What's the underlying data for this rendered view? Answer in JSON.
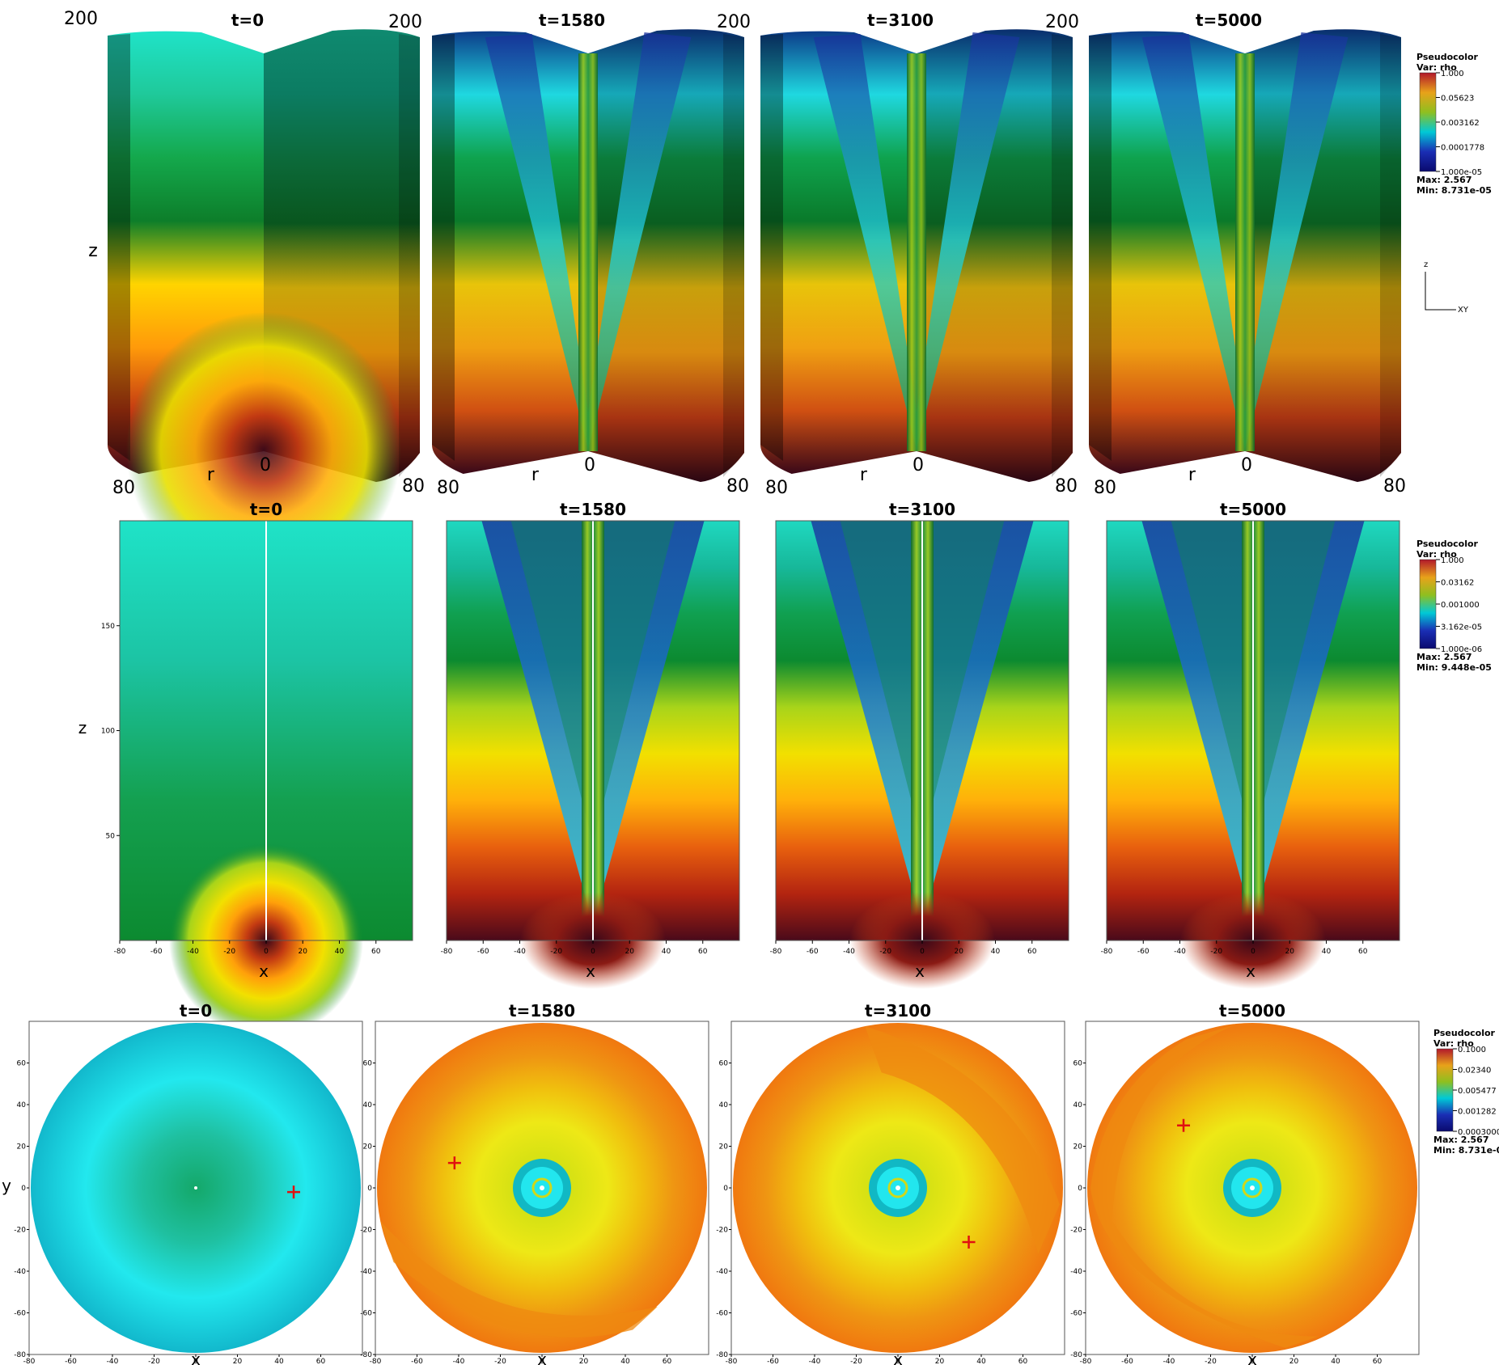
{
  "figure": {
    "legend_title": "Pseudocolor",
    "legend_var": "Var: rho",
    "orient_z": "z",
    "orient_xy": "XY"
  },
  "palette": {
    "cb_colors": [
      "#fff5f0",
      "#b2182b",
      "#e8a21a",
      "#8fbf1f",
      "#00c9d6",
      "#1a2eb4",
      "#0a0a6e"
    ],
    "row3d": {
      "left": [
        "#1fe3c8",
        "#1fc99a",
        "#14a84c",
        "#0d7e2a",
        "#ffd400",
        "#ff9a0a",
        "#c33a12",
        "#3a0818"
      ],
      "right": [
        "#0f8a70",
        "#0c7c62",
        "#0c6a3a",
        "#09561e",
        "#caa60a",
        "#d98a0a",
        "#a83212",
        "#2a0612"
      ]
    },
    "rowmid": [
      "#1fd8c0",
      "#17b89a",
      "#10a050",
      "#0c8a30",
      "#a8d41a",
      "#f2e000",
      "#ffb00a",
      "#e8600e",
      "#b32410",
      "#4a0a1a"
    ],
    "cone": [
      "#1a3a9e",
      "#1b7fd8",
      "#22e6ee"
    ],
    "disk": {
      "t0": [
        "#14a86a",
        "#1fc0a0",
        "#22e8ee",
        "#12b8cc"
      ],
      "late": [
        "#c6df12",
        "#d8e214",
        "#eee816",
        "#f0c00e",
        "#ef9512",
        "#f07810"
      ]
    }
  },
  "chart_data": [
    {
      "type": "3d-volume",
      "variable": "rho",
      "panels": [
        {
          "title": "t=0",
          "z_label": "200",
          "r_label": "r",
          "origin_label": "0",
          "left_label": "80",
          "right_label": "80",
          "axis_label": "z"
        },
        {
          "title": "t=1580",
          "z_label": "200",
          "r_label": "r",
          "origin_label": "0",
          "left_label": "80",
          "right_label": "80"
        },
        {
          "title": "t=3100",
          "z_label": "200",
          "r_label": "r",
          "origin_label": "0",
          "left_label": "80",
          "right_label": "80"
        },
        {
          "title": "t=5000",
          "z_label": "200",
          "r_label": "r",
          "origin_label": "0",
          "left_label": "80",
          "right_label": "80"
        }
      ],
      "colorbar": {
        "title": "Pseudocolor",
        "var": "Var: rho",
        "scale": "log",
        "ticks": [
          "1.000",
          "0.05623",
          "0.003162",
          "0.0001778",
          "1.000e-05"
        ],
        "max_label": "Max:  2.567",
        "min_label": "Min:  8.731e-05"
      }
    },
    {
      "type": "heatmap",
      "variable": "rho",
      "xlabel": "x",
      "ylabel": "z",
      "xlim": [
        -80,
        80
      ],
      "ylim": [
        0,
        200
      ],
      "x_ticks": [
        -80,
        -60,
        -40,
        -20,
        0,
        20,
        40,
        60
      ],
      "y_ticks": [
        50,
        100,
        150
      ],
      "panels": [
        {
          "title": "t=0",
          "show_y_ticks": true
        },
        {
          "title": "t=1580",
          "show_y_ticks": false
        },
        {
          "title": "t=3100",
          "show_y_ticks": false
        },
        {
          "title": "t=5000",
          "show_y_ticks": false
        }
      ],
      "colorbar": {
        "title": "Pseudocolor",
        "var": "Var: rho",
        "scale": "log",
        "ticks": [
          "1.000",
          "0.03162",
          "0.001000",
          "3.162e-05",
          "1.000e-06"
        ],
        "max_label": "Max:  2.567",
        "min_label": "Min:  9.448e-05"
      }
    },
    {
      "type": "heatmap",
      "variable": "rho",
      "xlabel": "x",
      "ylabel": "y",
      "xlim": [
        -80,
        80
      ],
      "ylim": [
        -80,
        80
      ],
      "x_ticks": [
        -80,
        -60,
        -40,
        -20,
        0,
        20,
        40,
        60
      ],
      "y_ticks": [
        -80,
        -60,
        -40,
        -20,
        0,
        20,
        40,
        60
      ],
      "panels": [
        {
          "title": "t=0",
          "marker": {
            "x": 47,
            "y": -2
          }
        },
        {
          "title": "t=1580",
          "marker": {
            "x": -42,
            "y": 12
          }
        },
        {
          "title": "t=3100",
          "marker": {
            "x": 34,
            "y": -26
          }
        },
        {
          "title": "t=5000",
          "marker": {
            "x": -33,
            "y": 30
          }
        }
      ],
      "colorbar": {
        "title": "Pseudocolor",
        "var": "Var: rho",
        "scale": "log",
        "ticks": [
          "0.1000",
          "0.02340",
          "0.005477",
          "0.001282",
          "0.0003000"
        ],
        "max_label": "Max:  2.567",
        "min_label": "Min:  8.731e-05"
      }
    }
  ]
}
